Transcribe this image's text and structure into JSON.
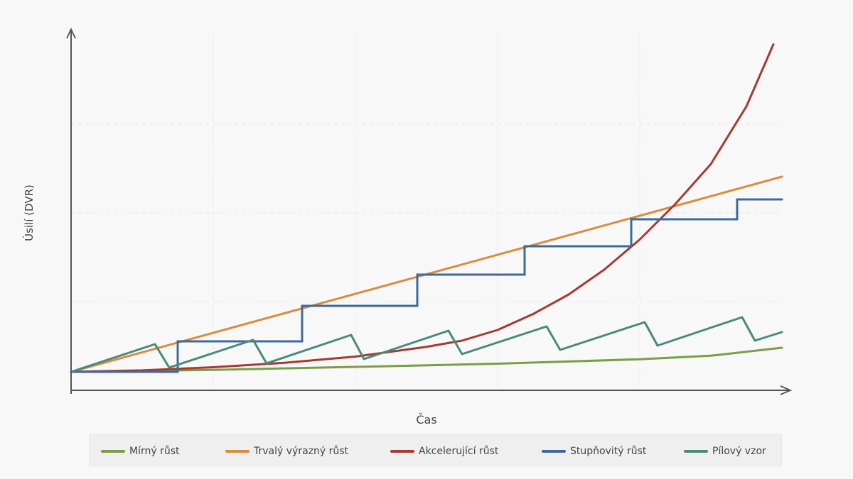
{
  "chart_data": {
    "type": "line",
    "title": "",
    "xlabel": "Čas",
    "ylabel": "Úsilí (DVR)",
    "xlim": [
      0,
      10.12
    ],
    "ylim": [
      0,
      4.08
    ],
    "grid": true,
    "x_grid": [
      2,
      4,
      6,
      8
    ],
    "y_grid": [
      1,
      2,
      3
    ],
    "legend_position": "bottom",
    "series": [
      {
        "name": "Mírný růst",
        "color": "#7a9e45",
        "points": [
          [
            0,
            0.208
          ],
          [
            2,
            0.23
          ],
          [
            4,
            0.264
          ],
          [
            6,
            0.3
          ],
          [
            8,
            0.35
          ],
          [
            9,
            0.39
          ],
          [
            10,
            0.48
          ]
        ]
      },
      {
        "name": "Trvalý výrazný růst",
        "color": "#d98c3c",
        "points": [
          [
            0,
            0.208
          ],
          [
            10,
            2.408
          ]
        ]
      },
      {
        "name": "Akcelerující růst",
        "color": "#a63a32",
        "points": [
          [
            0,
            0.208
          ],
          [
            1,
            0.225
          ],
          [
            2,
            0.26
          ],
          [
            3,
            0.31
          ],
          [
            4,
            0.38
          ],
          [
            5,
            0.49
          ],
          [
            5.5,
            0.56
          ],
          [
            6,
            0.68
          ],
          [
            6.5,
            0.86
          ],
          [
            7,
            1.08
          ],
          [
            7.5,
            1.36
          ],
          [
            8,
            1.7
          ],
          [
            8.5,
            2.1
          ],
          [
            9,
            2.55
          ],
          [
            9.5,
            3.2
          ],
          [
            9.88,
            3.9
          ]
        ]
      },
      {
        "name": "Stupňovitý růst",
        "color": "#3d6a9e",
        "step": true,
        "points": [
          [
            0,
            0.208
          ],
          [
            1.5,
            0.208
          ],
          [
            1.5,
            0.552
          ],
          [
            3.25,
            0.552
          ],
          [
            3.25,
            0.952
          ],
          [
            4.87,
            0.952
          ],
          [
            4.87,
            1.304
          ],
          [
            6.38,
            1.304
          ],
          [
            6.38,
            1.624
          ],
          [
            7.88,
            1.624
          ],
          [
            7.88,
            1.928
          ],
          [
            9.37,
            1.928
          ],
          [
            9.37,
            2.152
          ],
          [
            10,
            2.152
          ]
        ]
      },
      {
        "name": "Pílový vzor",
        "color": "#4a8a7a",
        "points": [
          [
            0,
            0.208
          ],
          [
            1.18,
            0.52
          ],
          [
            1.38,
            0.256
          ],
          [
            2.56,
            0.568
          ],
          [
            2.75,
            0.304
          ],
          [
            3.94,
            0.624
          ],
          [
            4.12,
            0.352
          ],
          [
            5.31,
            0.672
          ],
          [
            5.5,
            0.408
          ],
          [
            6.69,
            0.72
          ],
          [
            6.88,
            0.456
          ],
          [
            8.07,
            0.768
          ],
          [
            8.25,
            0.504
          ],
          [
            9.44,
            0.824
          ],
          [
            9.62,
            0.56
          ],
          [
            10,
            0.656
          ]
        ]
      }
    ]
  }
}
